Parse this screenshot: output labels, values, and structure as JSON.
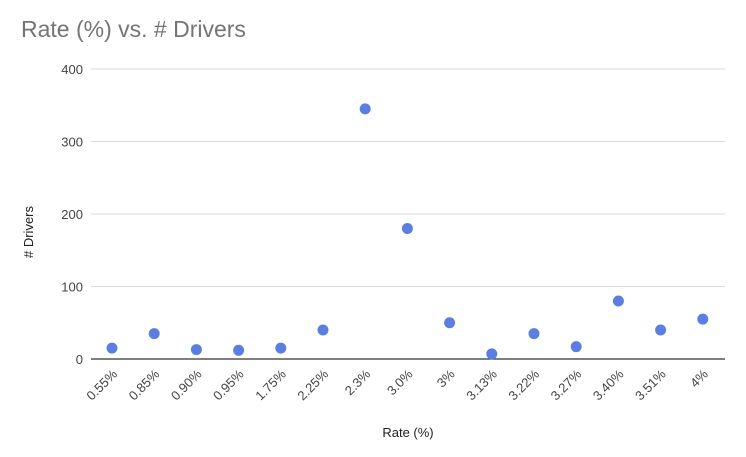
{
  "chart_data": {
    "type": "scatter",
    "title": "Rate (%) vs. # Drivers",
    "xlabel": "Rate (%)",
    "ylabel": "# Drivers",
    "categories": [
      "0.55%",
      "0.85%",
      "0.90%",
      "0.95%",
      "1.75%",
      "2.25%",
      "2.3%",
      "3.0%",
      "3%",
      "3.13%",
      "3.22%",
      "3.27%",
      "3.40%",
      "3.51%",
      "4%"
    ],
    "values": [
      15,
      35,
      13,
      12,
      15,
      40,
      345,
      180,
      50,
      7,
      35,
      17,
      80,
      40,
      55
    ],
    "ylim": [
      0,
      400
    ],
    "yticks": [
      0,
      100,
      200,
      300,
      400
    ],
    "grid": true,
    "legend": "none",
    "colors": {
      "point": "#5b7fe0",
      "grid": "#d9d9d9",
      "axis": "#333333"
    }
  }
}
